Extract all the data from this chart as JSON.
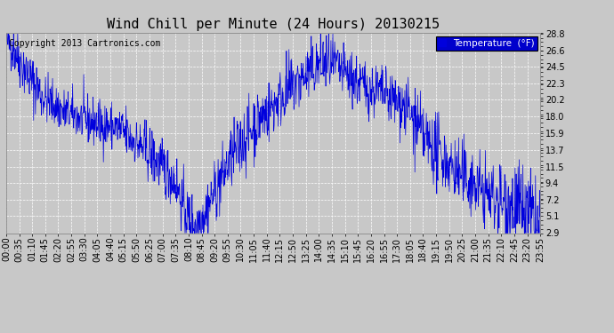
{
  "title": "Wind Chill per Minute (24 Hours) 20130215",
  "copyright_text": "Copyright 2013 Cartronics.com",
  "legend_label": "Temperature  (°F)",
  "line_color": "#0000dd",
  "background_color": "#c8c8c8",
  "plot_bg_color": "#c8c8c8",
  "grid_color": "#ffffff",
  "yticks": [
    2.9,
    5.1,
    7.2,
    9.4,
    11.5,
    13.7,
    15.9,
    18.0,
    20.2,
    22.3,
    24.5,
    26.6,
    28.8
  ],
  "ylim": [
    2.9,
    28.8
  ],
  "xtick_labels": [
    "00:00",
    "00:35",
    "01:10",
    "01:45",
    "02:20",
    "02:55",
    "03:30",
    "04:05",
    "04:40",
    "05:15",
    "05:50",
    "06:25",
    "07:00",
    "07:35",
    "08:10",
    "08:45",
    "09:20",
    "09:55",
    "10:30",
    "11:05",
    "11:40",
    "12:15",
    "12:50",
    "13:25",
    "14:00",
    "14:35",
    "15:10",
    "15:45",
    "16:20",
    "16:55",
    "17:30",
    "18:05",
    "18:40",
    "19:15",
    "19:50",
    "20:25",
    "21:00",
    "21:35",
    "22:10",
    "22:45",
    "23:20",
    "23:55"
  ],
  "legend_bg": "#0000cc",
  "legend_text_color": "#ffffff",
  "title_fontsize": 11,
  "axis_fontsize": 7,
  "copyright_fontsize": 7,
  "keypoints_x": [
    0,
    20,
    40,
    70,
    100,
    130,
    160,
    190,
    220,
    260,
    300,
    340,
    380,
    420,
    450,
    460,
    470,
    480,
    490,
    500,
    510,
    520,
    540,
    570,
    600,
    640,
    680,
    720,
    760,
    800,
    840,
    860,
    880,
    900,
    930,
    960,
    990,
    1010,
    1030,
    1050,
    1070,
    1090,
    1110,
    1130,
    1160,
    1190,
    1220,
    1250,
    1280,
    1310,
    1340,
    1360,
    1380,
    1400,
    1420,
    1439
  ],
  "keypoints_y": [
    28.0,
    27.0,
    25.0,
    22.5,
    20.5,
    19.5,
    18.5,
    18.0,
    17.5,
    17.0,
    16.5,
    15.0,
    13.5,
    11.5,
    10.0,
    9.0,
    7.5,
    6.0,
    5.0,
    4.5,
    4.2,
    4.5,
    6.0,
    9.0,
    12.0,
    15.0,
    17.5,
    19.5,
    21.5,
    23.0,
    24.5,
    25.0,
    24.5,
    24.0,
    23.0,
    22.0,
    21.5,
    21.0,
    20.5,
    20.0,
    19.5,
    18.0,
    16.5,
    15.0,
    13.5,
    12.0,
    10.5,
    9.5,
    8.5,
    7.5,
    7.0,
    6.5,
    6.0,
    5.5,
    4.5,
    3.5
  ],
  "noise_seed": 42
}
